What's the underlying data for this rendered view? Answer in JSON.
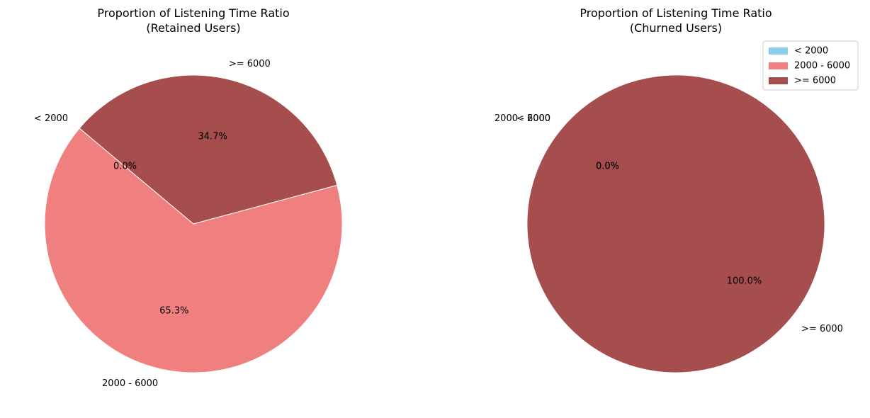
{
  "chart_data": [
    {
      "type": "pie",
      "title": "Proportion of Listening Time Ratio",
      "subtitle": "(Retained Users)",
      "labels": [
        "< 2000",
        "2000 - 6000",
        ">= 6000"
      ],
      "values": [
        0.0,
        65.3,
        34.7
      ],
      "pct_labels": [
        "0.0%",
        "65.3%",
        "34.7%"
      ],
      "colors": [
        "#87CEEB",
        "#F08080",
        "#A64D4D"
      ],
      "start_angle_deg": 140,
      "legend": false
    },
    {
      "type": "pie",
      "title": "Proportion of Listening Time Ratio",
      "subtitle": "(Churned Users)",
      "labels": [
        "< 2000",
        "2000 - 6000",
        ">= 6000"
      ],
      "values": [
        0.0,
        0.0,
        100.0
      ],
      "pct_labels": [
        "0.0%",
        "0.0%",
        "100.0%"
      ],
      "colors": [
        "#87CEEB",
        "#F08080",
        "#A64D4D"
      ],
      "start_angle_deg": 140,
      "legend": true,
      "legend_position": "upper right"
    }
  ],
  "legend": {
    "entries": [
      "< 2000",
      "2000 - 6000",
      ">= 6000"
    ]
  }
}
